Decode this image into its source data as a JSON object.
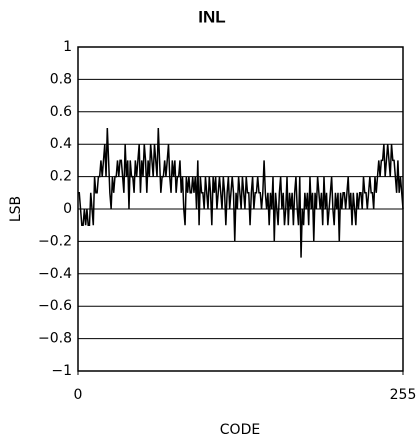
{
  "chart_data": {
    "type": "line",
    "title": "INL",
    "x_label": "CODE",
    "y_label": "LSB",
    "color": "#000000",
    "grid": true,
    "xlim": [
      0,
      255
    ],
    "xticks": [
      0,
      255
    ],
    "ylim": [
      -1,
      1
    ],
    "yticks": [
      {
        "value": -1,
        "label": "−1"
      },
      {
        "value": -0.8,
        "label": "−0.8"
      },
      {
        "value": -0.6,
        "label": "−0.6"
      },
      {
        "value": -0.4,
        "label": "−0.4"
      },
      {
        "value": -0.2,
        "label": "−0.2"
      },
      0,
      0.2,
      0.4,
      0.6,
      0.8,
      1
    ],
    "x": [
      0,
      1,
      2,
      3,
      4,
      5,
      6,
      7,
      8,
      9,
      10,
      11,
      12,
      13,
      14,
      15,
      16,
      17,
      18,
      19,
      20,
      21,
      22,
      23,
      24,
      25,
      26,
      27,
      28,
      29,
      30,
      31,
      32,
      33,
      34,
      35,
      36,
      37,
      38,
      39,
      40,
      41,
      42,
      43,
      44,
      45,
      46,
      47,
      48,
      49,
      50,
      51,
      52,
      53,
      54,
      55,
      56,
      57,
      58,
      59,
      60,
      61,
      62,
      63,
      64,
      65,
      66,
      67,
      68,
      69,
      70,
      71,
      72,
      73,
      74,
      75,
      76,
      77,
      78,
      79,
      80,
      81,
      82,
      83,
      84,
      85,
      86,
      87,
      88,
      89,
      90,
      91,
      92,
      93,
      94,
      95,
      96,
      97,
      98,
      99,
      100,
      101,
      102,
      103,
      104,
      105,
      106,
      107,
      108,
      109,
      110,
      111,
      112,
      113,
      114,
      115,
      116,
      117,
      118,
      119,
      120,
      121,
      122,
      123,
      124,
      125,
      126,
      127,
      128,
      129,
      130,
      131,
      132,
      133,
      134,
      135,
      136,
      137,
      138,
      139,
      140,
      141,
      142,
      143,
      144,
      145,
      146,
      147,
      148,
      149,
      150,
      151,
      152,
      153,
      154,
      155,
      156,
      157,
      158,
      159,
      160,
      161,
      162,
      163,
      164,
      165,
      166,
      167,
      168,
      169,
      170,
      171,
      172,
      173,
      174,
      175,
      176,
      177,
      178,
      179,
      180,
      181,
      182,
      183,
      184,
      185,
      186,
      187,
      188,
      189,
      190,
      191,
      192,
      193,
      194,
      195,
      196,
      197,
      198,
      199,
      200,
      201,
      202,
      203,
      204,
      205,
      206,
      207,
      208,
      209,
      210,
      211,
      212,
      213,
      214,
      215,
      216,
      217,
      218,
      219,
      220,
      221,
      222,
      223,
      224,
      225,
      226,
      227,
      228,
      229,
      230,
      231,
      232,
      233,
      234,
      235,
      236,
      237,
      238,
      239,
      240,
      241,
      242,
      243,
      244,
      245,
      246,
      247,
      248,
      249,
      250,
      251,
      252,
      253,
      254,
      255
    ],
    "values": [
      0.1,
      0.1,
      0,
      -0.1,
      -0.1,
      0,
      -0.1,
      0,
      -0.1,
      -0.1,
      0.1,
      0,
      -0.1,
      0.2,
      0.1,
      0.1,
      0.2,
      0.2,
      0.3,
      0.2,
      0.3,
      0.4,
      0.2,
      0.5,
      0.3,
      0.1,
      0,
      0.2,
      0.1,
      0.2,
      0.2,
      0.3,
      0.2,
      0.3,
      0.3,
      0.2,
      0.1,
      0.4,
      0.2,
      0.3,
      0,
      0.3,
      0.2,
      0.2,
      0.1,
      0.3,
      0.2,
      0.3,
      0.4,
      0.1,
      0.3,
      0.2,
      0.4,
      0.3,
      0.1,
      0.3,
      0.2,
      0.4,
      0.3,
      0.2,
      0.4,
      0.3,
      0.2,
      0.5,
      0.3,
      0.1,
      0.2,
      0.2,
      0.3,
      0.2,
      0.3,
      0.4,
      0.2,
      0.1,
      0.3,
      0.2,
      0.3,
      0.1,
      0.2,
      0.2,
      0.3,
      0.1,
      0.2,
      0,
      -0.1,
      0.2,
      0.1,
      0.2,
      0.1,
      0.1,
      0.2,
      0.1,
      0.2,
      0,
      0.3,
      -0.1,
      0.2,
      0.1,
      0.1,
      0,
      0.2,
      0.1,
      0,
      0.2,
      0.1,
      -0.1,
      0.2,
      0.1,
      0.2,
      0,
      0.1,
      0.2,
      0.1,
      0,
      0.2,
      0.1,
      -0.1,
      0.1,
      0.2,
      0,
      0.1,
      0.2,
      0.1,
      -0.2,
      0.1,
      0,
      0.2,
      0.1,
      0,
      0.2,
      0.1,
      0,
      0.2,
      0.1,
      0.1,
      -0.1,
      0.1,
      0.2,
      0,
      0.1,
      0.1,
      0.2,
      0.1,
      0.1,
      0,
      0.1,
      0.3,
      0.1,
      0,
      0.1,
      -0.1,
      0.1,
      0,
      0.2,
      -0.2,
      0.1,
      0,
      -0.1,
      0.1,
      0.2,
      0,
      0.1,
      -0.1,
      0,
      0.2,
      -0.1,
      0.1,
      0,
      0.1,
      -0.1,
      0.1,
      0.2,
      0,
      -0.1,
      0.2,
      -0.3,
      0,
      -0.1,
      0.1,
      0,
      0.1,
      -0.1,
      0.2,
      0,
      0.1,
      -0.2,
      0.1,
      0,
      0.2,
      0.1,
      0,
      0.1,
      -0.1,
      0.2,
      0,
      0.1,
      -0.1,
      0,
      0.1,
      0.2,
      0,
      -0.1,
      0.1,
      0,
      0.1,
      -0.2,
      0.1,
      0,
      0.1,
      0.1,
      0,
      0.1,
      0.2,
      0,
      0.1,
      -0.1,
      0.1,
      0,
      -0.1,
      0.1,
      0,
      0.1,
      0.1,
      0,
      0.2,
      0.1,
      0.1,
      0,
      0.1,
      0.2,
      0.1,
      0.1,
      0,
      0.2,
      0.1,
      0.2,
      0.3,
      0.2,
      0.3,
      0.3,
      0.4,
      0.2,
      0.3,
      0.4,
      0.3,
      0.2,
      0.4,
      0.3,
      0.3,
      0.2,
      0.1,
      0.3,
      0.1,
      0.2,
      0.1,
      0
    ]
  }
}
